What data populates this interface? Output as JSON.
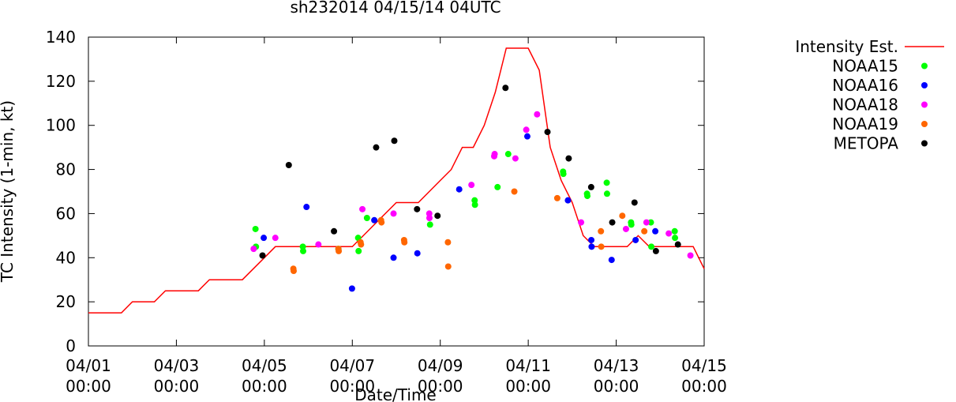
{
  "chart_data": {
    "type": "scatter",
    "title": "sh232014 04/15/14 04UTC",
    "xlabel": "Date/Time",
    "ylabel": "TC Intensity (1-min, kt)",
    "xlim": [
      "2014-04-01T00:00",
      "2014-04-15T00:00"
    ],
    "ylim": [
      0,
      140
    ],
    "yticks": [
      0,
      20,
      40,
      60,
      80,
      100,
      120,
      140
    ],
    "xticks": [
      {
        "x": "2014-04-01T00:00",
        "date": "04/01",
        "time": "00:00"
      },
      {
        "x": "2014-04-03T00:00",
        "date": "04/03",
        "time": "00:00"
      },
      {
        "x": "2014-04-05T00:00",
        "date": "04/05",
        "time": "00:00"
      },
      {
        "x": "2014-04-07T00:00",
        "date": "04/07",
        "time": "00:00"
      },
      {
        "x": "2014-04-09T00:00",
        "date": "04/09",
        "time": "00:00"
      },
      {
        "x": "2014-04-11T00:00",
        "date": "04/11",
        "time": "00:00"
      },
      {
        "x": "2014-04-13T00:00",
        "date": "04/13",
        "time": "00:00"
      },
      {
        "x": "2014-04-15T00:00",
        "date": "04/15",
        "time": "00:00"
      }
    ],
    "grid": false,
    "legend_position": "outside-right",
    "series": [
      {
        "name": "Intensity Est.",
        "type": "line",
        "color": "#ff0000",
        "points": [
          [
            "2014-04-01T00:00",
            15
          ],
          [
            "2014-04-01T18:00",
            15
          ],
          [
            "2014-04-02T00:00",
            20
          ],
          [
            "2014-04-02T12:00",
            20
          ],
          [
            "2014-04-02T18:00",
            25
          ],
          [
            "2014-04-03T12:00",
            25
          ],
          [
            "2014-04-03T18:00",
            30
          ],
          [
            "2014-04-04T12:00",
            30
          ],
          [
            "2014-04-04T18:00",
            35
          ],
          [
            "2014-04-05T00:00",
            40
          ],
          [
            "2014-04-05T06:00",
            45
          ],
          [
            "2014-04-06T12:00",
            45
          ],
          [
            "2014-04-06T18:00",
            45
          ],
          [
            "2014-04-07T00:00",
            45
          ],
          [
            "2014-04-07T06:00",
            50
          ],
          [
            "2014-04-07T12:00",
            55
          ],
          [
            "2014-04-07T18:00",
            60
          ],
          [
            "2014-04-08T00:00",
            65
          ],
          [
            "2014-04-08T12:00",
            65
          ],
          [
            "2014-04-08T18:00",
            70
          ],
          [
            "2014-04-09T00:00",
            75
          ],
          [
            "2014-04-09T06:00",
            80
          ],
          [
            "2014-04-09T12:00",
            90
          ],
          [
            "2014-04-09T18:00",
            90
          ],
          [
            "2014-04-10T00:00",
            100
          ],
          [
            "2014-04-10T06:00",
            115
          ],
          [
            "2014-04-10T12:00",
            135
          ],
          [
            "2014-04-11T00:00",
            135
          ],
          [
            "2014-04-11T06:00",
            125
          ],
          [
            "2014-04-11T12:00",
            90
          ],
          [
            "2014-04-11T18:00",
            75
          ],
          [
            "2014-04-12T00:00",
            65
          ],
          [
            "2014-04-12T06:00",
            50
          ],
          [
            "2014-04-12T12:00",
            45
          ],
          [
            "2014-04-13T06:00",
            45
          ],
          [
            "2014-04-13T12:00",
            50
          ],
          [
            "2014-04-13T18:00",
            45
          ],
          [
            "2014-04-14T18:00",
            45
          ],
          [
            "2014-04-15T00:00",
            35
          ]
        ]
      },
      {
        "name": "NOAA15",
        "type": "scatter",
        "color": "#00ff00",
        "points": [
          [
            "2014-04-04T19:10",
            53
          ],
          [
            "2014-04-04T19:25",
            45
          ],
          [
            "2014-04-05T21:00",
            45
          ],
          [
            "2014-04-05T21:10",
            43
          ],
          [
            "2014-04-06T16:25",
            44
          ],
          [
            "2014-04-07T03:10",
            49
          ],
          [
            "2014-04-07T03:25",
            43
          ],
          [
            "2014-04-07T08:00",
            58
          ],
          [
            "2014-04-08T18:25",
            55
          ],
          [
            "2014-04-09T18:45",
            66
          ],
          [
            "2014-04-09T18:55",
            64
          ],
          [
            "2014-04-10T07:15",
            72
          ],
          [
            "2014-04-10T13:05",
            87
          ],
          [
            "2014-04-11T19:00",
            79
          ],
          [
            "2014-04-11T19:10",
            78
          ],
          [
            "2014-04-12T08:05",
            69
          ],
          [
            "2014-04-12T08:15",
            68
          ],
          [
            "2014-04-12T18:50",
            74
          ],
          [
            "2014-04-12T19:00",
            69
          ],
          [
            "2014-04-13T08:05",
            56
          ],
          [
            "2014-04-13T08:15",
            55
          ],
          [
            "2014-04-13T18:55",
            56
          ],
          [
            "2014-04-13T19:10",
            45
          ],
          [
            "2014-04-14T07:55",
            52
          ],
          [
            "2014-04-14T08:05",
            49
          ]
        ]
      },
      {
        "name": "NOAA16",
        "type": "scatter",
        "color": "#0000ff",
        "points": [
          [
            "2014-04-04T23:40",
            49
          ],
          [
            "2014-04-05T23:00",
            63
          ],
          [
            "2014-04-06T23:50",
            26
          ],
          [
            "2014-04-07T12:00",
            57
          ],
          [
            "2014-04-07T22:30",
            40
          ],
          [
            "2014-04-08T11:30",
            42
          ],
          [
            "2014-04-09T10:20",
            71
          ],
          [
            "2014-04-10T23:30",
            95
          ],
          [
            "2014-04-11T21:40",
            66
          ],
          [
            "2014-04-12T10:25",
            48
          ],
          [
            "2014-04-12T10:35",
            45
          ],
          [
            "2014-04-12T21:30",
            39
          ],
          [
            "2014-04-13T10:35",
            48
          ],
          [
            "2014-04-13T21:20",
            52
          ]
        ]
      },
      {
        "name": "NOAA18",
        "type": "scatter",
        "color": "#ff00ff",
        "points": [
          [
            "2014-04-04T18:10",
            44
          ],
          [
            "2014-04-05T06:00",
            49
          ],
          [
            "2014-04-06T05:30",
            46
          ],
          [
            "2014-04-07T05:30",
            62
          ],
          [
            "2014-04-07T22:30",
            60
          ],
          [
            "2014-04-08T18:00",
            60
          ],
          [
            "2014-04-08T18:05",
            58
          ],
          [
            "2014-04-09T17:00",
            73
          ],
          [
            "2014-04-10T05:25",
            86
          ],
          [
            "2014-04-10T05:40",
            87
          ],
          [
            "2014-04-10T17:00",
            85
          ],
          [
            "2014-04-10T22:55",
            98
          ],
          [
            "2014-04-11T04:50",
            105
          ],
          [
            "2014-04-12T04:50",
            56
          ],
          [
            "2014-04-13T05:20",
            53
          ],
          [
            "2014-04-13T16:30",
            56
          ],
          [
            "2014-04-14T16:30",
            41
          ],
          [
            "2014-04-14T04:40",
            51
          ]
        ]
      },
      {
        "name": "NOAA19",
        "type": "scatter",
        "color": "#ff6600",
        "points": [
          [
            "2014-04-05T15:50",
            35
          ],
          [
            "2014-04-05T16:00",
            34
          ],
          [
            "2014-04-06T16:25",
            44
          ],
          [
            "2014-04-06T16:35",
            43
          ],
          [
            "2014-04-07T04:30",
            47
          ],
          [
            "2014-04-07T04:45",
            46
          ],
          [
            "2014-04-07T15:40",
            57
          ],
          [
            "2014-04-07T15:55",
            56
          ],
          [
            "2014-04-08T04:15",
            48
          ],
          [
            "2014-04-08T04:25",
            47
          ],
          [
            "2014-04-09T04:10",
            47
          ],
          [
            "2014-04-09T04:20",
            36
          ],
          [
            "2014-04-10T16:25",
            70
          ],
          [
            "2014-04-11T15:50",
            67
          ],
          [
            "2014-04-12T15:40",
            52
          ],
          [
            "2014-04-12T15:50",
            45
          ],
          [
            "2014-04-13T03:20",
            59
          ],
          [
            "2014-04-13T15:20",
            52
          ]
        ]
      },
      {
        "name": "METOPA",
        "type": "scatter",
        "color": "#000000",
        "points": [
          [
            "2014-04-04T23:00",
            41
          ],
          [
            "2014-04-05T13:20",
            82
          ],
          [
            "2014-04-06T14:00",
            52
          ],
          [
            "2014-04-07T13:00",
            90
          ],
          [
            "2014-04-07T22:55",
            93
          ],
          [
            "2014-04-08T11:20",
            62
          ],
          [
            "2014-04-08T22:30",
            59
          ],
          [
            "2014-04-10T11:35",
            117
          ],
          [
            "2014-04-11T10:30",
            97
          ],
          [
            "2014-04-11T22:05",
            85
          ],
          [
            "2014-04-12T10:20",
            72
          ],
          [
            "2014-04-12T21:50",
            56
          ],
          [
            "2014-04-13T10:00",
            65
          ],
          [
            "2014-04-13T21:40",
            43
          ],
          [
            "2014-04-14T09:40",
            46
          ]
        ]
      }
    ]
  }
}
